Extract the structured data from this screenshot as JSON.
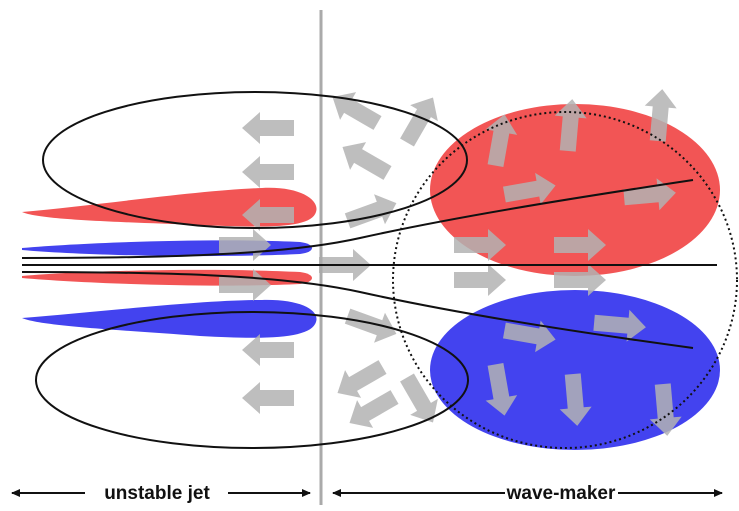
{
  "labels": {
    "left": "unstable jet",
    "right": "wave-maker"
  }
}
